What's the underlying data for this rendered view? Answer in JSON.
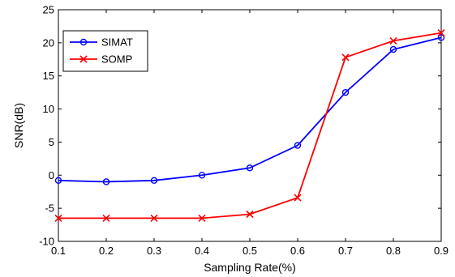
{
  "chart_data": {
    "type": "line",
    "title": "",
    "xlabel": "Sampling Rate(%)",
    "ylabel": "SNR(dB)",
    "xlim": [
      0.1,
      0.9
    ],
    "ylim": [
      -10,
      25
    ],
    "x_ticks": [
      0.1,
      0.2,
      0.3,
      0.4,
      0.5,
      0.6,
      0.7,
      0.8,
      0.9
    ],
    "x_tick_labels": [
      "0.1",
      "0.2",
      "0.3",
      "0.4",
      "0.5",
      "0.6",
      "0.7",
      "0.8",
      "0.9"
    ],
    "y_ticks": [
      -10,
      -5,
      0,
      5,
      10,
      15,
      20,
      25
    ],
    "y_tick_labels": [
      "-10",
      "-5",
      "0",
      "5",
      "10",
      "15",
      "20",
      "25"
    ],
    "grid": false,
    "legend_position": "top-left",
    "x": [
      0.1,
      0.2,
      0.3,
      0.4,
      0.5,
      0.6,
      0.7,
      0.8,
      0.9
    ],
    "series": [
      {
        "name": "SIMAT",
        "color": "#0000ff",
        "marker": "circle",
        "values": [
          -0.8,
          -1.0,
          -0.8,
          0.0,
          1.1,
          4.5,
          12.5,
          19.0,
          20.8
        ]
      },
      {
        "name": "SOMP",
        "color": "#ff0000",
        "marker": "x",
        "values": [
          -6.5,
          -6.5,
          -6.5,
          -6.5,
          -5.9,
          -3.4,
          17.8,
          20.3,
          21.5
        ]
      }
    ]
  }
}
